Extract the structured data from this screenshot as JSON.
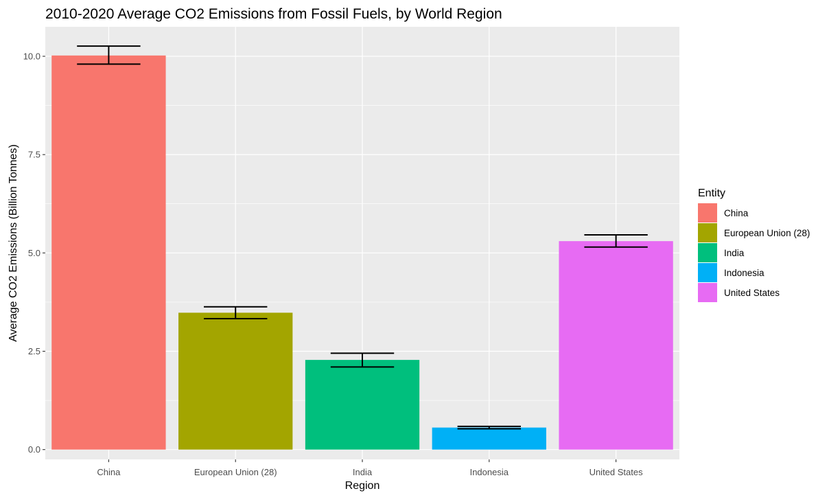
{
  "chart_data": {
    "type": "bar",
    "title": "2010-2020 Average CO2 Emissions from Fossil Fuels, by World Region",
    "xlabel": "Region",
    "ylabel": "Average CO2 Emissions (Billion Tonnes)",
    "categories": [
      "China",
      "European Union (28)",
      "India",
      "Indonesia",
      "United States"
    ],
    "values": [
      10.02,
      3.48,
      2.28,
      0.56,
      5.3
    ],
    "error_bars": {
      "lower": [
        9.8,
        3.33,
        2.1,
        0.53,
        5.15
      ],
      "upper": [
        10.26,
        3.63,
        2.45,
        0.59,
        5.46
      ]
    },
    "ylim": [
      -0.25,
      10.75
    ],
    "yticks": [
      0.0,
      2.5,
      5.0,
      7.5,
      10.0
    ],
    "ytick_labels": [
      "0.0",
      "2.5",
      "5.0",
      "7.5",
      "10.0"
    ],
    "grid": true,
    "legend": {
      "title": "Entity",
      "position": "right",
      "entries": [
        "China",
        "European Union (28)",
        "India",
        "Indonesia",
        "United States"
      ]
    },
    "colors": {
      "China": "#F8766D",
      "European Union (28)": "#A3A500",
      "India": "#00BF7D",
      "Indonesia": "#00B0F6",
      "United States": "#E76BF3",
      "panel_background": "#EBEBEB",
      "grid": "#FFFFFF"
    }
  }
}
